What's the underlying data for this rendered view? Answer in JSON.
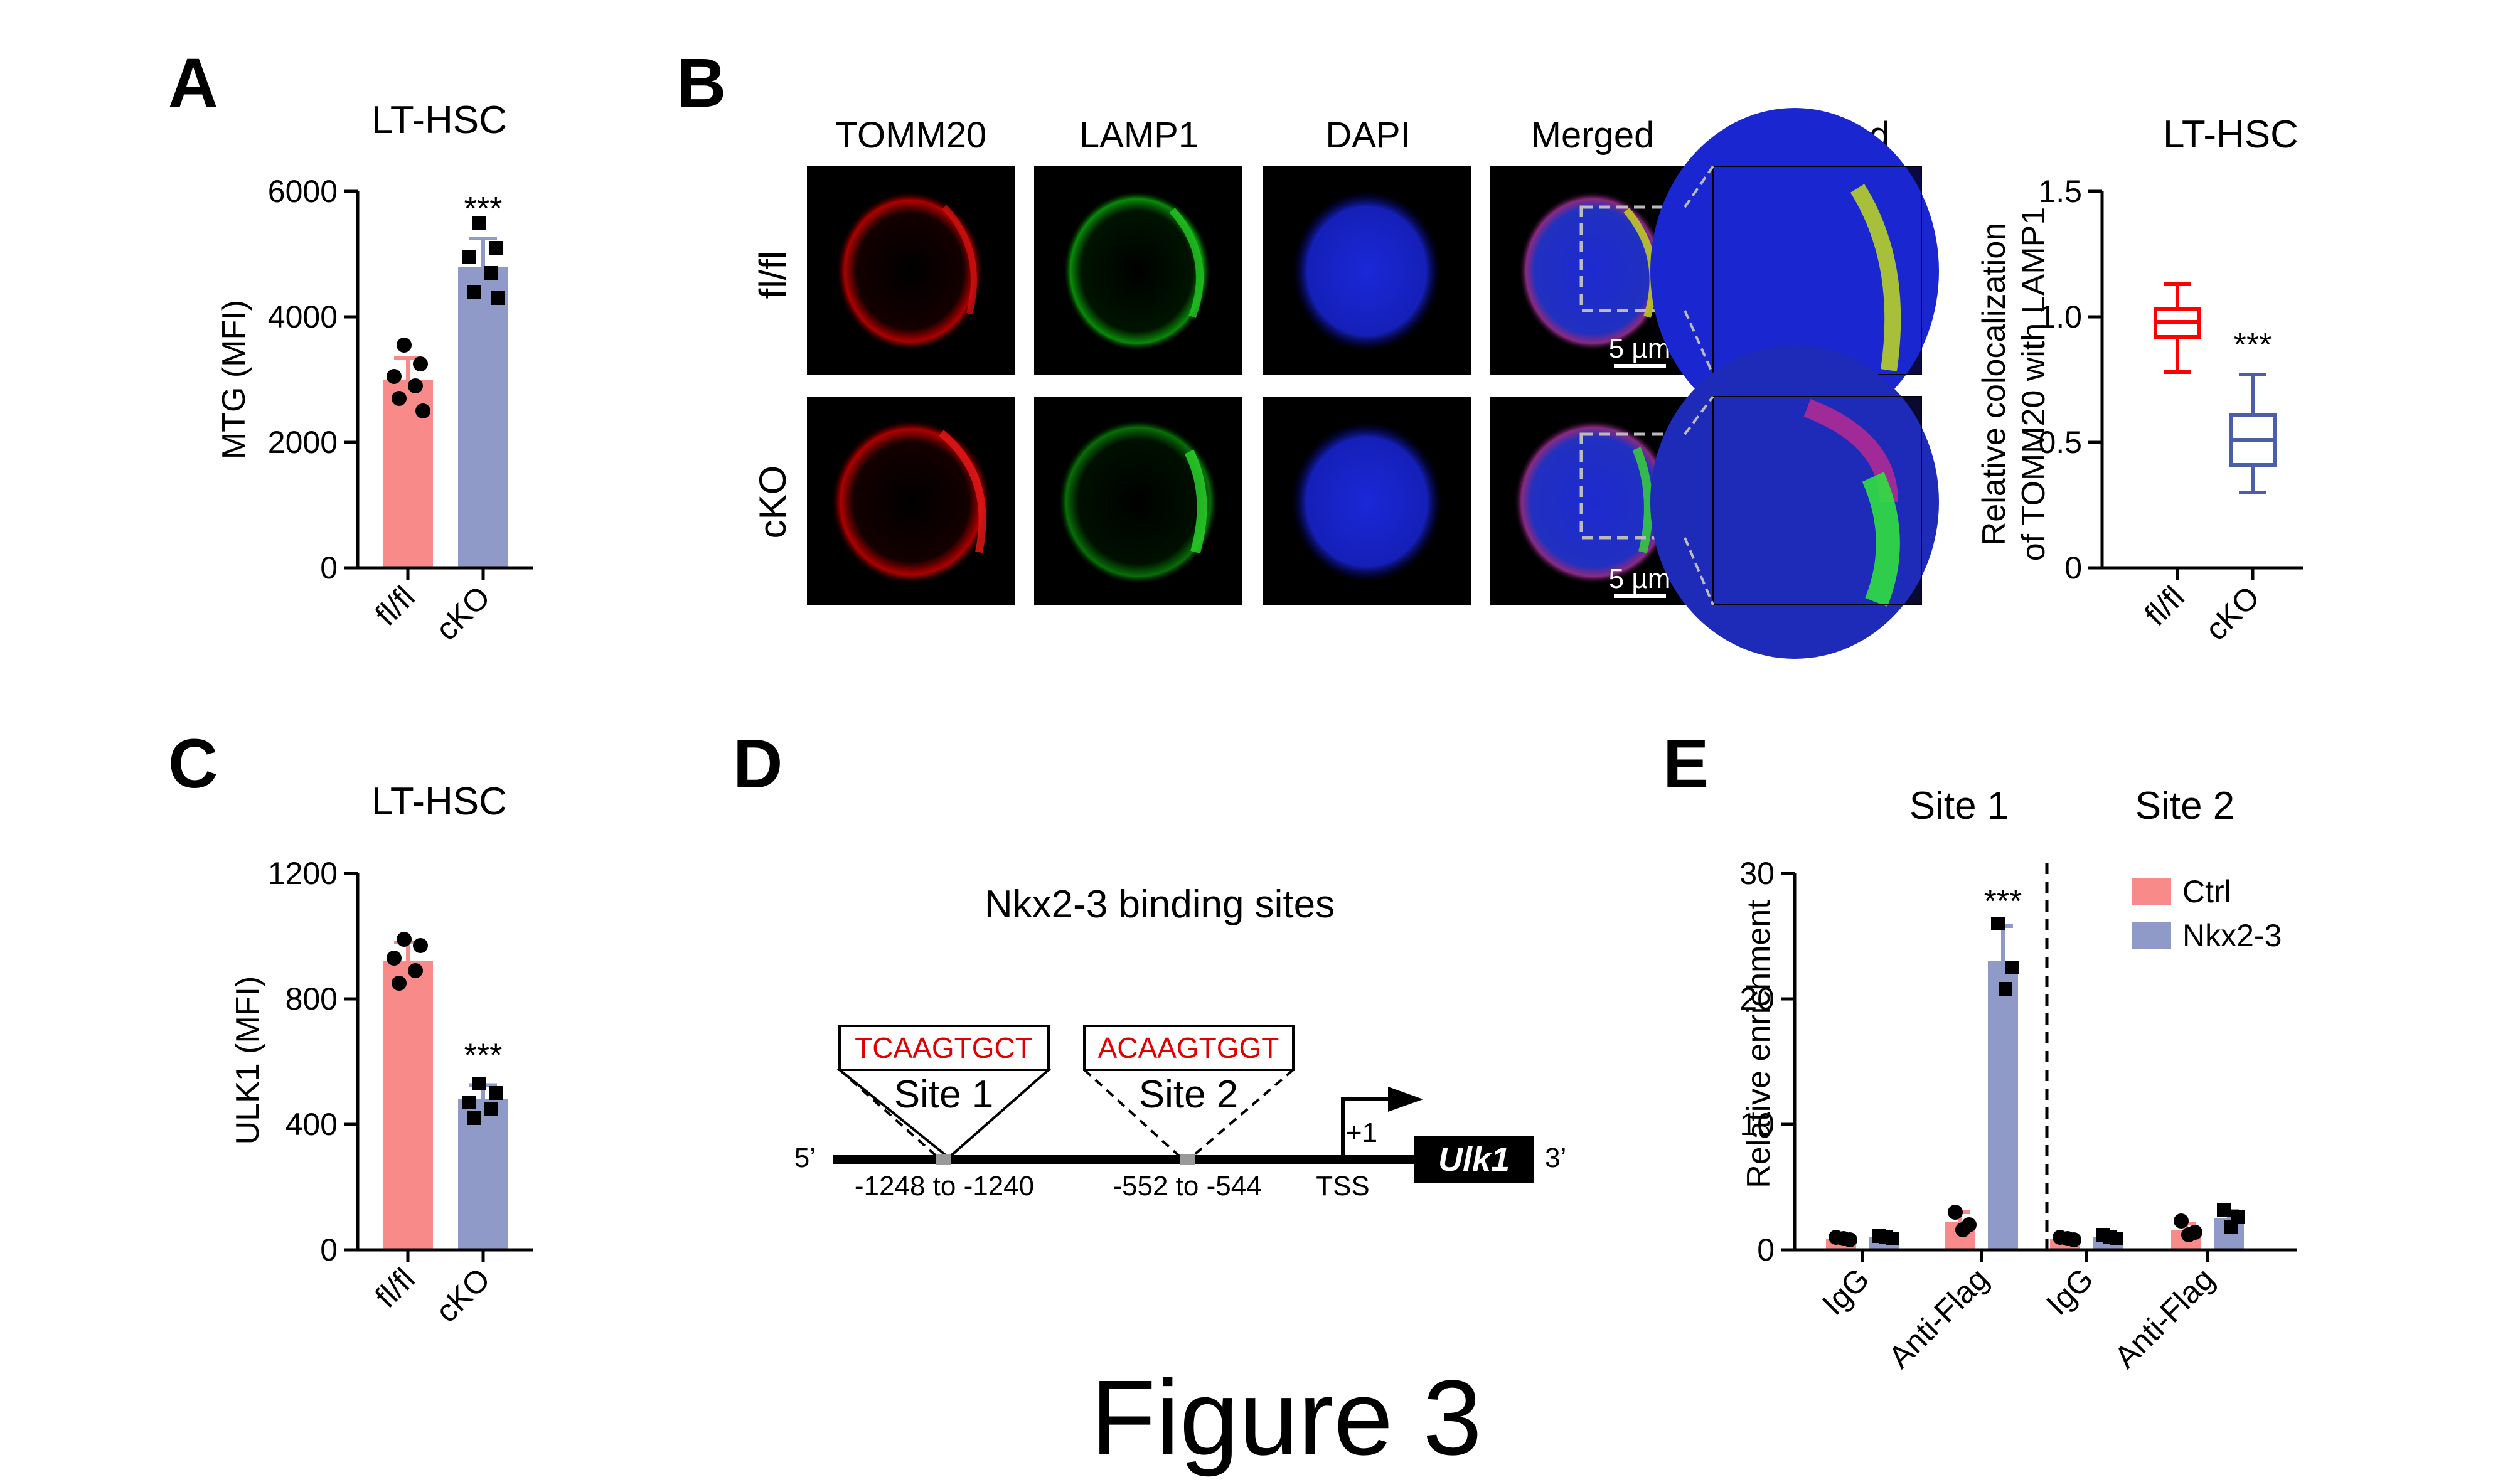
{
  "panels": {
    "A": {
      "label": "A",
      "title": "LT-HSC",
      "ylabel": "MTG (MFI)",
      "stars": "***",
      "chart_data": {
        "type": "bar",
        "categories": [
          "fl/fl",
          "cKO"
        ],
        "values": [
          3000,
          4800
        ],
        "errors": [
          350,
          450
        ],
        "ylim": [
          0,
          6000
        ],
        "yticks": [
          "0",
          "2000",
          "4000",
          "6000"
        ],
        "points": [
          [
            3550,
            3250,
            3050,
            2900,
            2700,
            2500
          ],
          [
            5500,
            5100,
            4950,
            4700,
            4400,
            4300
          ]
        ],
        "colors": [
          "#f98a8a",
          "#8f9ac8"
        ]
      }
    },
    "B": {
      "label": "B",
      "channels": [
        "TOMM20",
        "LAMP1",
        "DAPI",
        "Merged",
        "Enlarged"
      ],
      "rows": [
        "fl/fl",
        "cKO"
      ],
      "scale_bar": "5 µm",
      "title": "LT-HSC",
      "ylabel_line1": "Relative colocalization",
      "ylabel_line2": "of TOMM20 with LAMP1",
      "stars": "***",
      "chart_data": {
        "type": "box",
        "categories": [
          "fl/fl",
          "cKO"
        ],
        "min": [
          0.78,
          0.3
        ],
        "q1": [
          0.92,
          0.41
        ],
        "median": [
          0.98,
          0.51
        ],
        "q3": [
          1.03,
          0.61
        ],
        "max": [
          1.13,
          0.77
        ],
        "ylim": [
          0,
          1.5
        ],
        "yticks": [
          "0",
          "0.5",
          "1.0",
          "1.5"
        ],
        "colors": [
          "#ff0000",
          "#4a5fa8"
        ]
      }
    },
    "C": {
      "label": "C",
      "title": "LT-HSC",
      "ylabel": "ULK1 (MFI)",
      "stars": "***",
      "chart_data": {
        "type": "bar",
        "categories": [
          "fl/fl",
          "cKO"
        ],
        "values": [
          920,
          480
        ],
        "errors": [
          60,
          45
        ],
        "ylim": [
          0,
          1200
        ],
        "yticks": [
          "0",
          "400",
          "800",
          "1200"
        ],
        "points": [
          [
            990,
            970,
            930,
            890,
            850
          ],
          [
            530,
            500,
            470,
            450,
            420
          ]
        ],
        "colors": [
          "#f98a8a",
          "#8f9ac8"
        ]
      }
    },
    "D": {
      "label": "D",
      "title": "Nkx2-3 binding sites",
      "site1_seq": "TCAAGTGCT",
      "site1_label": "Site 1",
      "site2_seq": "ACAAGTGGT",
      "site2_label": "Site 2",
      "five_prime": "5’",
      "three_prime": "3’",
      "site1_pos": "-1248 to -1240",
      "site2_pos": "-552 to -544",
      "tss": "TSS",
      "plus1": "+1",
      "gene": "Ulk1"
    },
    "E": {
      "label": "E",
      "group1": "Site 1",
      "group2": "Site 2",
      "ylabel": "Relative enrichment",
      "stars": "***",
      "chart_data": {
        "type": "bar",
        "categories": [
          "IgG",
          "Anti-Flag",
          "IgG",
          "Anti-Flag"
        ],
        "series": [
          {
            "name": "Ctrl",
            "values": [
              0.9,
              2.2,
              0.9,
              1.6
            ],
            "errors": [
              0.2,
              0.8,
              0.2,
              0.5
            ],
            "points": [
              [
                1.0,
                0.8,
                0.9
              ],
              [
                3.0,
                2.0,
                1.6
              ],
              [
                1.0,
                0.8,
                0.9
              ],
              [
                2.3,
                1.4,
                1.2
              ]
            ]
          },
          {
            "name": "Nkx2-3",
            "values": [
              1.0,
              23.0,
              1.0,
              2.5
            ],
            "errors": [
              0.2,
              2.8,
              0.2,
              0.6
            ],
            "points": [
              [
                1.1,
                0.9,
                1.0
              ],
              [
                26.0,
                22.5,
                20.8
              ],
              [
                1.2,
                0.9,
                1.0
              ],
              [
                3.2,
                2.6,
                1.8
              ]
            ]
          }
        ],
        "ylim": [
          0,
          30
        ],
        "yticks": [
          "0",
          "10",
          "20",
          "30"
        ],
        "colors": [
          "#f98a8a",
          "#8f9ac8"
        ]
      }
    }
  },
  "figure_title": "Figure 3"
}
